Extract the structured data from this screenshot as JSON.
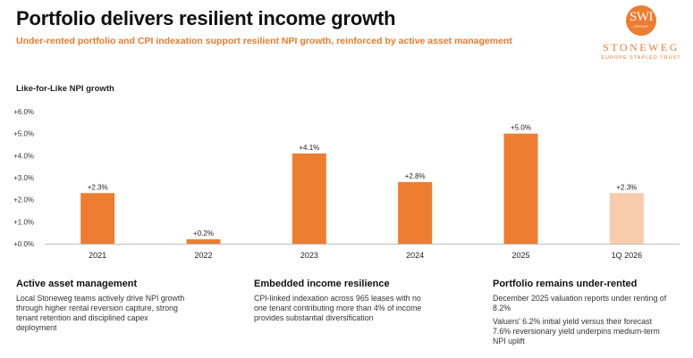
{
  "header": {
    "title": "Portfolio delivers resilient income growth",
    "subtitle": "Under-rented portfolio and CPI indexation support resilient NPI growth, reinforced by active asset management"
  },
  "logo": {
    "monogram": "SWI",
    "group_label": "GROUP",
    "name": "STONEWEG",
    "tagline": "EUROPE STAPLED TRUST"
  },
  "colors": {
    "accent": "#ed7d31",
    "bar_highlight": "#f8cbad"
  },
  "chart_data": {
    "type": "bar",
    "ylabel": "Like-for-Like NPI growth",
    "categories": [
      "2021",
      "2022",
      "2023",
      "2024",
      "2025",
      "1Q 2026"
    ],
    "values": [
      2.3,
      0.2,
      4.1,
      2.8,
      5.0,
      2.3
    ],
    "data_labels": [
      "+2.3%",
      "+0.2%",
      "+4.1%",
      "+2.8%",
      "+5.0%",
      "+2.3%"
    ],
    "bar_colors": [
      "#ed7d31",
      "#ed7d31",
      "#ed7d31",
      "#ed7d31",
      "#ed7d31",
      "#f8cbad"
    ],
    "ylim": [
      0,
      6
    ],
    "yticks": [
      0,
      1,
      2,
      3,
      4,
      5,
      6
    ],
    "ytick_labels": [
      "+0.0%",
      "+1.0%",
      "+2.0%",
      "+3.0%",
      "+4.0%",
      "+5.0%",
      "+6.0%"
    ],
    "grid": false,
    "legend": "none"
  },
  "columns": [
    {
      "title": "Active asset management",
      "body": [
        "Local Stoneweg teams actively drive NPI growth through higher rental reversion capture, strong tenant retention and disciplined capex deployment"
      ]
    },
    {
      "title": "Embedded income resilience",
      "body": [
        "CPI-linked indexation across 965 leases with no one tenant contributing more than 4% of income provides substantial diversification"
      ]
    },
    {
      "title": "Portfolio remains under-rented",
      "body": [
        "December 2025 valuation reports under renting of 8.2%",
        "Valuers' 6.2% initial yield versus their forecast 7.6% reversionary yield underpins medium-term NPI uplift"
      ]
    }
  ]
}
